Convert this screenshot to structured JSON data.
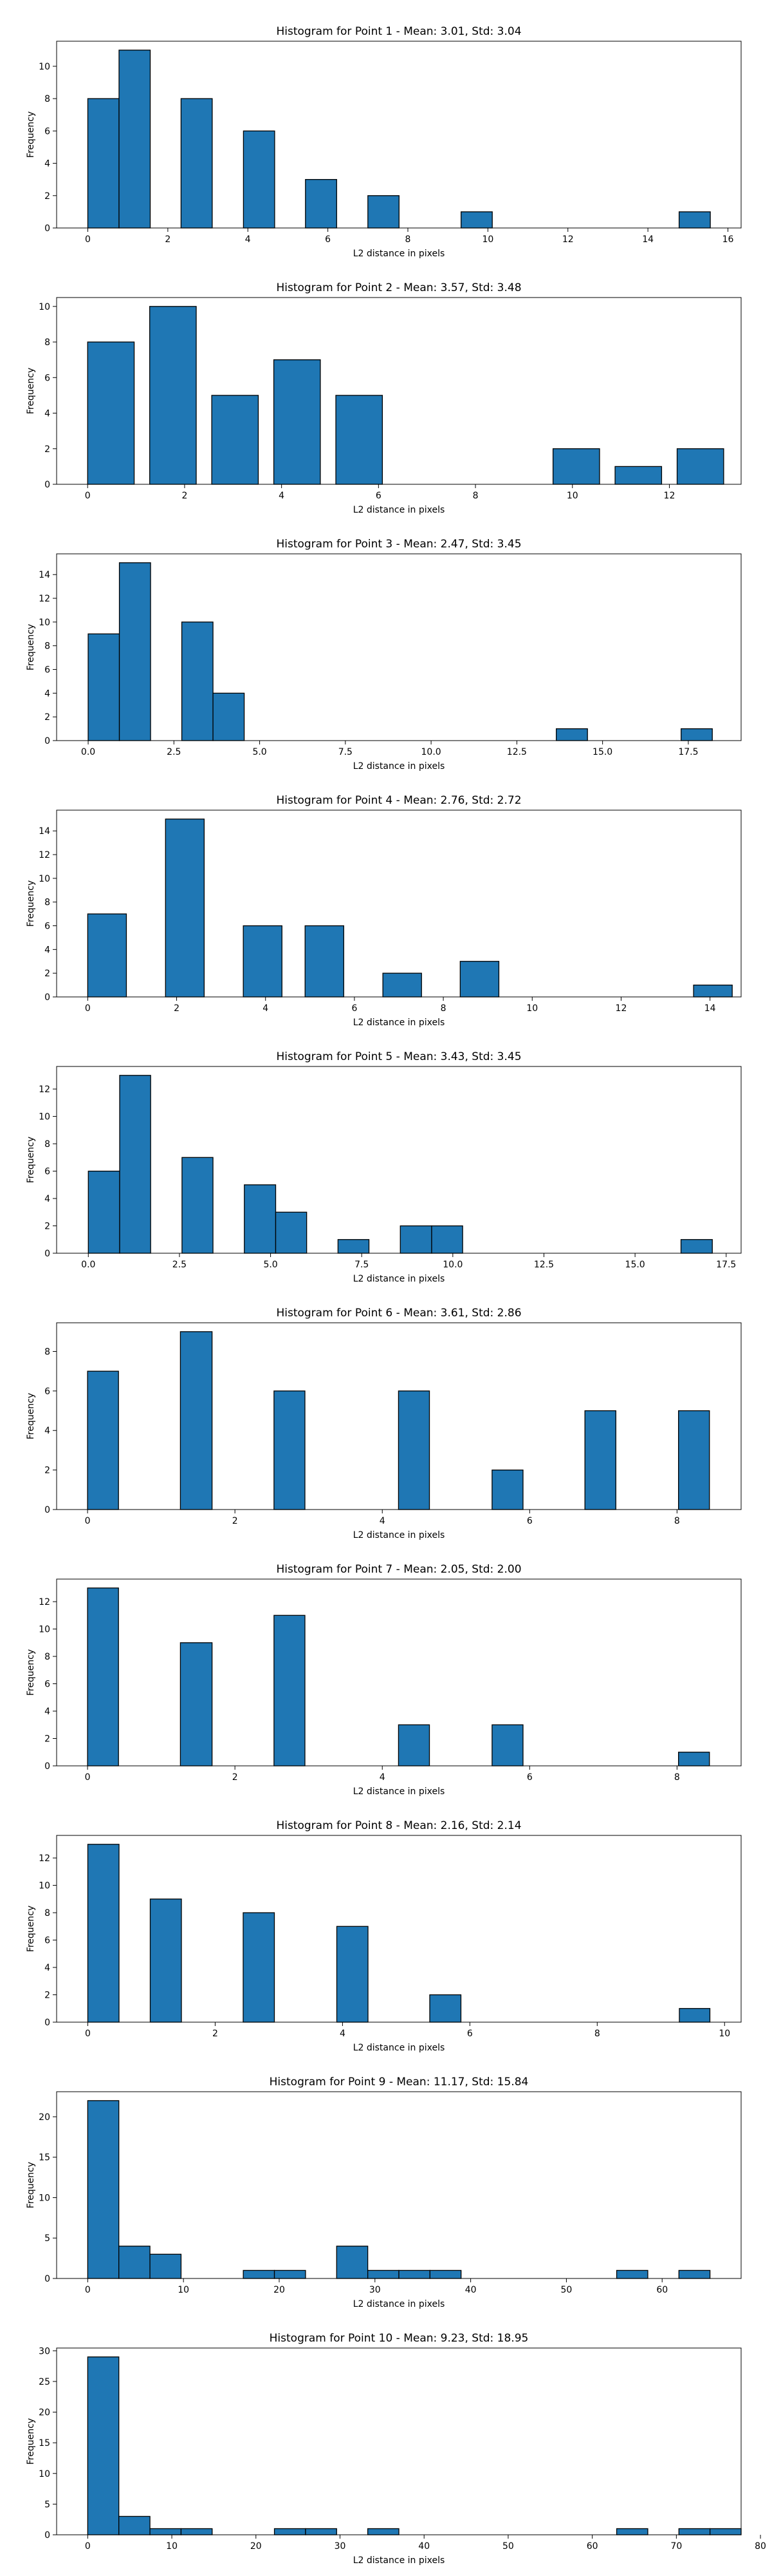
{
  "chart_data": [
    {
      "type": "bar",
      "title": "Histogram for Point 1 - Mean: 3.01, Std: 3.04",
      "xlabel": "L2 distance in pixels",
      "ylabel": "Frequency",
      "xlim": [
        -0.78,
        16.33
      ],
      "ylim": [
        0,
        11.55
      ],
      "xticks": [
        0,
        2,
        4,
        6,
        8,
        10,
        12,
        14,
        16
      ],
      "xtick_labels": [
        "0",
        "2",
        "4",
        "6",
        "8",
        "10",
        "12",
        "14",
        "16"
      ],
      "yticks": [
        0,
        2,
        4,
        6,
        8,
        10
      ],
      "ytick_labels": [
        "0",
        "2",
        "4",
        "6",
        "8",
        "10"
      ],
      "bars": [
        {
          "x0": 0.0,
          "x1": 0.78,
          "value": 8
        },
        {
          "x0": 0.78,
          "x1": 1.56,
          "value": 11
        },
        {
          "x0": 2.33,
          "x1": 3.11,
          "value": 8
        },
        {
          "x0": 3.89,
          "x1": 4.67,
          "value": 6
        },
        {
          "x0": 5.44,
          "x1": 6.22,
          "value": 3
        },
        {
          "x0": 7.0,
          "x1": 7.78,
          "value": 2
        },
        {
          "x0": 9.33,
          "x1": 10.11,
          "value": 1
        },
        {
          "x0": 14.78,
          "x1": 15.56,
          "value": 1
        }
      ]
    },
    {
      "type": "bar",
      "title": "Histogram for Point 2 - Mean: 3.57, Std: 3.48",
      "xlabel": "L2 distance in pixels",
      "ylabel": "Frequency",
      "xlim": [
        -0.64,
        13.48
      ],
      "ylim": [
        0,
        10.5
      ],
      "xticks": [
        0,
        2,
        4,
        6,
        8,
        10,
        12
      ],
      "xtick_labels": [
        "0",
        "2",
        "4",
        "6",
        "8",
        "10",
        "12"
      ],
      "yticks": [
        0,
        2,
        4,
        6,
        8,
        10
      ],
      "ytick_labels": [
        "0",
        "2",
        "4",
        "6",
        "8",
        "10"
      ],
      "bars": [
        {
          "x0": 0.0,
          "x1": 0.96,
          "value": 8
        },
        {
          "x0": 1.28,
          "x1": 2.24,
          "value": 10
        },
        {
          "x0": 2.56,
          "x1": 3.52,
          "value": 5
        },
        {
          "x0": 3.84,
          "x1": 4.8,
          "value": 7
        },
        {
          "x0": 5.12,
          "x1": 6.08,
          "value": 5
        },
        {
          "x0": 9.6,
          "x1": 10.56,
          "value": 2
        },
        {
          "x0": 10.88,
          "x1": 11.84,
          "value": 1
        },
        {
          "x0": 12.16,
          "x1": 13.12,
          "value": 2
        }
      ]
    },
    {
      "type": "bar",
      "title": "Histogram for Point 3 - Mean: 2.47, Std: 3.45",
      "xlabel": "L2 distance in pixels",
      "ylabel": "Frequency",
      "xlim": [
        -0.92,
        19.04
      ],
      "ylim": [
        0,
        15.75
      ],
      "xticks": [
        0,
        2.5,
        5,
        7.5,
        10,
        12.5,
        15,
        17.5
      ],
      "xtick_labels": [
        "0.0",
        "2.5",
        "5.0",
        "7.5",
        "10.0",
        "12.5",
        "15.0",
        "17.5"
      ],
      "yticks": [
        0,
        2,
        4,
        6,
        8,
        10,
        12,
        14
      ],
      "ytick_labels": [
        "0",
        "2",
        "4",
        "6",
        "8",
        "10",
        "12",
        "14"
      ],
      "bars": [
        {
          "x0": 0.0,
          "x1": 0.91,
          "value": 9
        },
        {
          "x0": 0.91,
          "x1": 1.82,
          "value": 15
        },
        {
          "x0": 2.73,
          "x1": 3.64,
          "value": 10
        },
        {
          "x0": 3.64,
          "x1": 4.55,
          "value": 4
        },
        {
          "x0": 13.65,
          "x1": 14.56,
          "value": 1
        },
        {
          "x0": 17.29,
          "x1": 18.2,
          "value": 1
        }
      ]
    },
    {
      "type": "bar",
      "title": "Histogram for Point 4 - Mean: 2.76, Std: 2.72",
      "xlabel": "L2 distance in pixels",
      "ylabel": "Frequency",
      "xlim": [
        -0.7,
        14.7
      ],
      "ylim": [
        0,
        15.75
      ],
      "xticks": [
        0,
        2,
        4,
        6,
        8,
        10,
        12,
        14
      ],
      "xtick_labels": [
        "0",
        "2",
        "4",
        "6",
        "8",
        "10",
        "12",
        "14"
      ],
      "yticks": [
        0,
        2,
        4,
        6,
        8,
        10,
        12,
        14
      ],
      "ytick_labels": [
        "0",
        "2",
        "4",
        "6",
        "8",
        "10",
        "12",
        "14"
      ],
      "bars": [
        {
          "x0": 0.0,
          "x1": 0.87,
          "value": 7
        },
        {
          "x0": 1.75,
          "x1": 2.62,
          "value": 15
        },
        {
          "x0": 3.5,
          "x1": 4.37,
          "value": 6
        },
        {
          "x0": 4.89,
          "x1": 5.76,
          "value": 6
        },
        {
          "x0": 6.64,
          "x1": 7.51,
          "value": 2
        },
        {
          "x0": 8.38,
          "x1": 9.25,
          "value": 3
        },
        {
          "x0": 13.63,
          "x1": 14.5,
          "value": 1
        }
      ]
    },
    {
      "type": "bar",
      "title": "Histogram for Point 5 - Mean: 3.43, Std: 3.45",
      "xlabel": "L2 distance in pixels",
      "ylabel": "Frequency",
      "xlim": [
        -0.87,
        17.91
      ],
      "ylim": [
        0,
        13.65
      ],
      "xticks": [
        0,
        2.5,
        5,
        7.5,
        10,
        12.5,
        15,
        17.5
      ],
      "xtick_labels": [
        "0.0",
        "2.5",
        "5.0",
        "7.5",
        "10.0",
        "12.5",
        "15.0",
        "17.5"
      ],
      "yticks": [
        0,
        2,
        4,
        6,
        8,
        10,
        12
      ],
      "ytick_labels": [
        "0",
        "2",
        "4",
        "6",
        "8",
        "10",
        "12"
      ],
      "bars": [
        {
          "x0": 0.0,
          "x1": 0.86,
          "value": 6
        },
        {
          "x0": 0.86,
          "x1": 1.71,
          "value": 13
        },
        {
          "x0": 2.57,
          "x1": 3.42,
          "value": 7
        },
        {
          "x0": 4.28,
          "x1": 5.14,
          "value": 5
        },
        {
          "x0": 5.14,
          "x1": 5.99,
          "value": 3
        },
        {
          "x0": 6.85,
          "x1": 7.7,
          "value": 1
        },
        {
          "x0": 8.56,
          "x1": 9.42,
          "value": 2
        },
        {
          "x0": 9.42,
          "x1": 10.27,
          "value": 2
        },
        {
          "x0": 16.26,
          "x1": 17.12,
          "value": 1
        }
      ]
    },
    {
      "type": "bar",
      "title": "Histogram for Point 6 - Mean: 3.61, Std: 2.86",
      "xlabel": "L2 distance in pixels",
      "ylabel": "Frequency",
      "xlim": [
        -0.42,
        8.87
      ],
      "ylim": [
        0,
        9.45
      ],
      "xticks": [
        0,
        2,
        4,
        6,
        8
      ],
      "xtick_labels": [
        "0",
        "2",
        "4",
        "6",
        "8"
      ],
      "yticks": [
        0,
        2,
        4,
        6,
        8
      ],
      "ytick_labels": [
        "0",
        "2",
        "4",
        "6",
        "8"
      ],
      "bars": [
        {
          "x0": 0.0,
          "x1": 0.42,
          "value": 7
        },
        {
          "x0": 1.26,
          "x1": 1.69,
          "value": 9
        },
        {
          "x0": 2.53,
          "x1": 2.95,
          "value": 6
        },
        {
          "x0": 4.22,
          "x1": 4.64,
          "value": 6
        },
        {
          "x0": 5.49,
          "x1": 5.91,
          "value": 2
        },
        {
          "x0": 6.75,
          "x1": 7.17,
          "value": 5
        },
        {
          "x0": 8.02,
          "x1": 8.44,
          "value": 5
        }
      ]
    },
    {
      "type": "bar",
      "title": "Histogram for Point 7 - Mean: 2.05, Std: 2.00",
      "xlabel": "L2 distance in pixels",
      "ylabel": "Frequency",
      "xlim": [
        -0.42,
        8.87
      ],
      "ylim": [
        0,
        13.65
      ],
      "xticks": [
        0,
        2,
        4,
        6,
        8
      ],
      "xtick_labels": [
        "0",
        "2",
        "4",
        "6",
        "8"
      ],
      "yticks": [
        0,
        2,
        4,
        6,
        8,
        10,
        12
      ],
      "ytick_labels": [
        "0",
        "2",
        "4",
        "6",
        "8",
        "10",
        "12"
      ],
      "bars": [
        {
          "x0": 0.0,
          "x1": 0.42,
          "value": 13
        },
        {
          "x0": 1.26,
          "x1": 1.69,
          "value": 9
        },
        {
          "x0": 2.53,
          "x1": 2.95,
          "value": 11
        },
        {
          "x0": 4.22,
          "x1": 4.64,
          "value": 3
        },
        {
          "x0": 5.49,
          "x1": 5.91,
          "value": 3
        },
        {
          "x0": 8.02,
          "x1": 8.44,
          "value": 1
        }
      ]
    },
    {
      "type": "bar",
      "title": "Histogram for Point 8 - Mean: 2.16, Std: 2.14",
      "xlabel": "L2 distance in pixels",
      "ylabel": "Frequency",
      "xlim": [
        -0.49,
        10.26
      ],
      "ylim": [
        0,
        13.65
      ],
      "xticks": [
        0,
        2,
        4,
        6,
        8,
        10
      ],
      "xtick_labels": [
        "0",
        "2",
        "4",
        "6",
        "8",
        "10"
      ],
      "yticks": [
        0,
        2,
        4,
        6,
        8,
        10,
        12
      ],
      "ytick_labels": [
        "0",
        "2",
        "4",
        "6",
        "8",
        "10",
        "12"
      ],
      "bars": [
        {
          "x0": 0.0,
          "x1": 0.49,
          "value": 13
        },
        {
          "x0": 0.98,
          "x1": 1.47,
          "value": 9
        },
        {
          "x0": 2.44,
          "x1": 2.93,
          "value": 8
        },
        {
          "x0": 3.91,
          "x1": 4.4,
          "value": 7
        },
        {
          "x0": 5.37,
          "x1": 5.86,
          "value": 2
        },
        {
          "x0": 9.29,
          "x1": 9.77,
          "value": 1
        }
      ]
    },
    {
      "type": "bar",
      "title": "Histogram for Point 9 - Mean: 11.17, Std: 15.84",
      "xlabel": "L2 distance in pixels",
      "ylabel": "Frequency",
      "xlim": [
        -3.25,
        68.25
      ],
      "ylim": [
        0,
        23.1
      ],
      "xticks": [
        0,
        10,
        20,
        30,
        40,
        50,
        60
      ],
      "xtick_labels": [
        "0",
        "10",
        "20",
        "30",
        "40",
        "50",
        "60"
      ],
      "yticks": [
        0,
        5,
        10,
        15,
        20
      ],
      "ytick_labels": [
        "0",
        "5",
        "10",
        "15",
        "20"
      ],
      "bars": [
        {
          "x0": 0.0,
          "x1": 3.25,
          "value": 22
        },
        {
          "x0": 3.25,
          "x1": 6.5,
          "value": 4
        },
        {
          "x0": 6.5,
          "x1": 9.75,
          "value": 3
        },
        {
          "x0": 16.25,
          "x1": 19.5,
          "value": 1
        },
        {
          "x0": 19.5,
          "x1": 22.75,
          "value": 1
        },
        {
          "x0": 26.0,
          "x1": 29.25,
          "value": 4
        },
        {
          "x0": 29.25,
          "x1": 32.5,
          "value": 1
        },
        {
          "x0": 32.5,
          "x1": 35.75,
          "value": 1
        },
        {
          "x0": 35.75,
          "x1": 39.0,
          "value": 1
        },
        {
          "x0": 55.25,
          "x1": 58.5,
          "value": 1
        },
        {
          "x0": 61.75,
          "x1": 65.0,
          "value": 1
        }
      ]
    },
    {
      "type": "bar",
      "title": "Histogram for Point 10 - Mean: 9.23, Std: 18.95",
      "xlabel": "L2 distance in pixels",
      "ylabel": "Frequency",
      "xlim": [
        -3.7,
        77.7
      ],
      "ylim": [
        0,
        30.45
      ],
      "xticks": [
        0,
        10,
        20,
        30,
        40,
        50,
        60,
        70,
        80
      ],
      "xtick_labels": [
        "0",
        "10",
        "20",
        "30",
        "40",
        "50",
        "60",
        "70",
        "80"
      ],
      "yticks": [
        0,
        5,
        10,
        15,
        20,
        25,
        30
      ],
      "ytick_labels": [
        "0",
        "5",
        "10",
        "15",
        "20",
        "25",
        "30"
      ],
      "bars": [
        {
          "x0": 0.0,
          "x1": 3.7,
          "value": 29
        },
        {
          "x0": 3.7,
          "x1": 7.4,
          "value": 3
        },
        {
          "x0": 7.4,
          "x1": 11.1,
          "value": 1
        },
        {
          "x0": 11.1,
          "x1": 14.8,
          "value": 1
        },
        {
          "x0": 22.2,
          "x1": 25.9,
          "value": 1
        },
        {
          "x0": 25.9,
          "x1": 29.6,
          "value": 1
        },
        {
          "x0": 33.3,
          "x1": 37.0,
          "value": 1
        },
        {
          "x0": 62.9,
          "x1": 66.6,
          "value": 1
        },
        {
          "x0": 70.3,
          "x1": 74.0,
          "value": 1
        },
        {
          "x0": 74.0,
          "x1": 77.7,
          "value": 1
        }
      ]
    }
  ],
  "style": {
    "bar_fill": "#1f77b4",
    "bar_edge": "#000000",
    "axis_color": "#000000",
    "background": "#ffffff"
  }
}
